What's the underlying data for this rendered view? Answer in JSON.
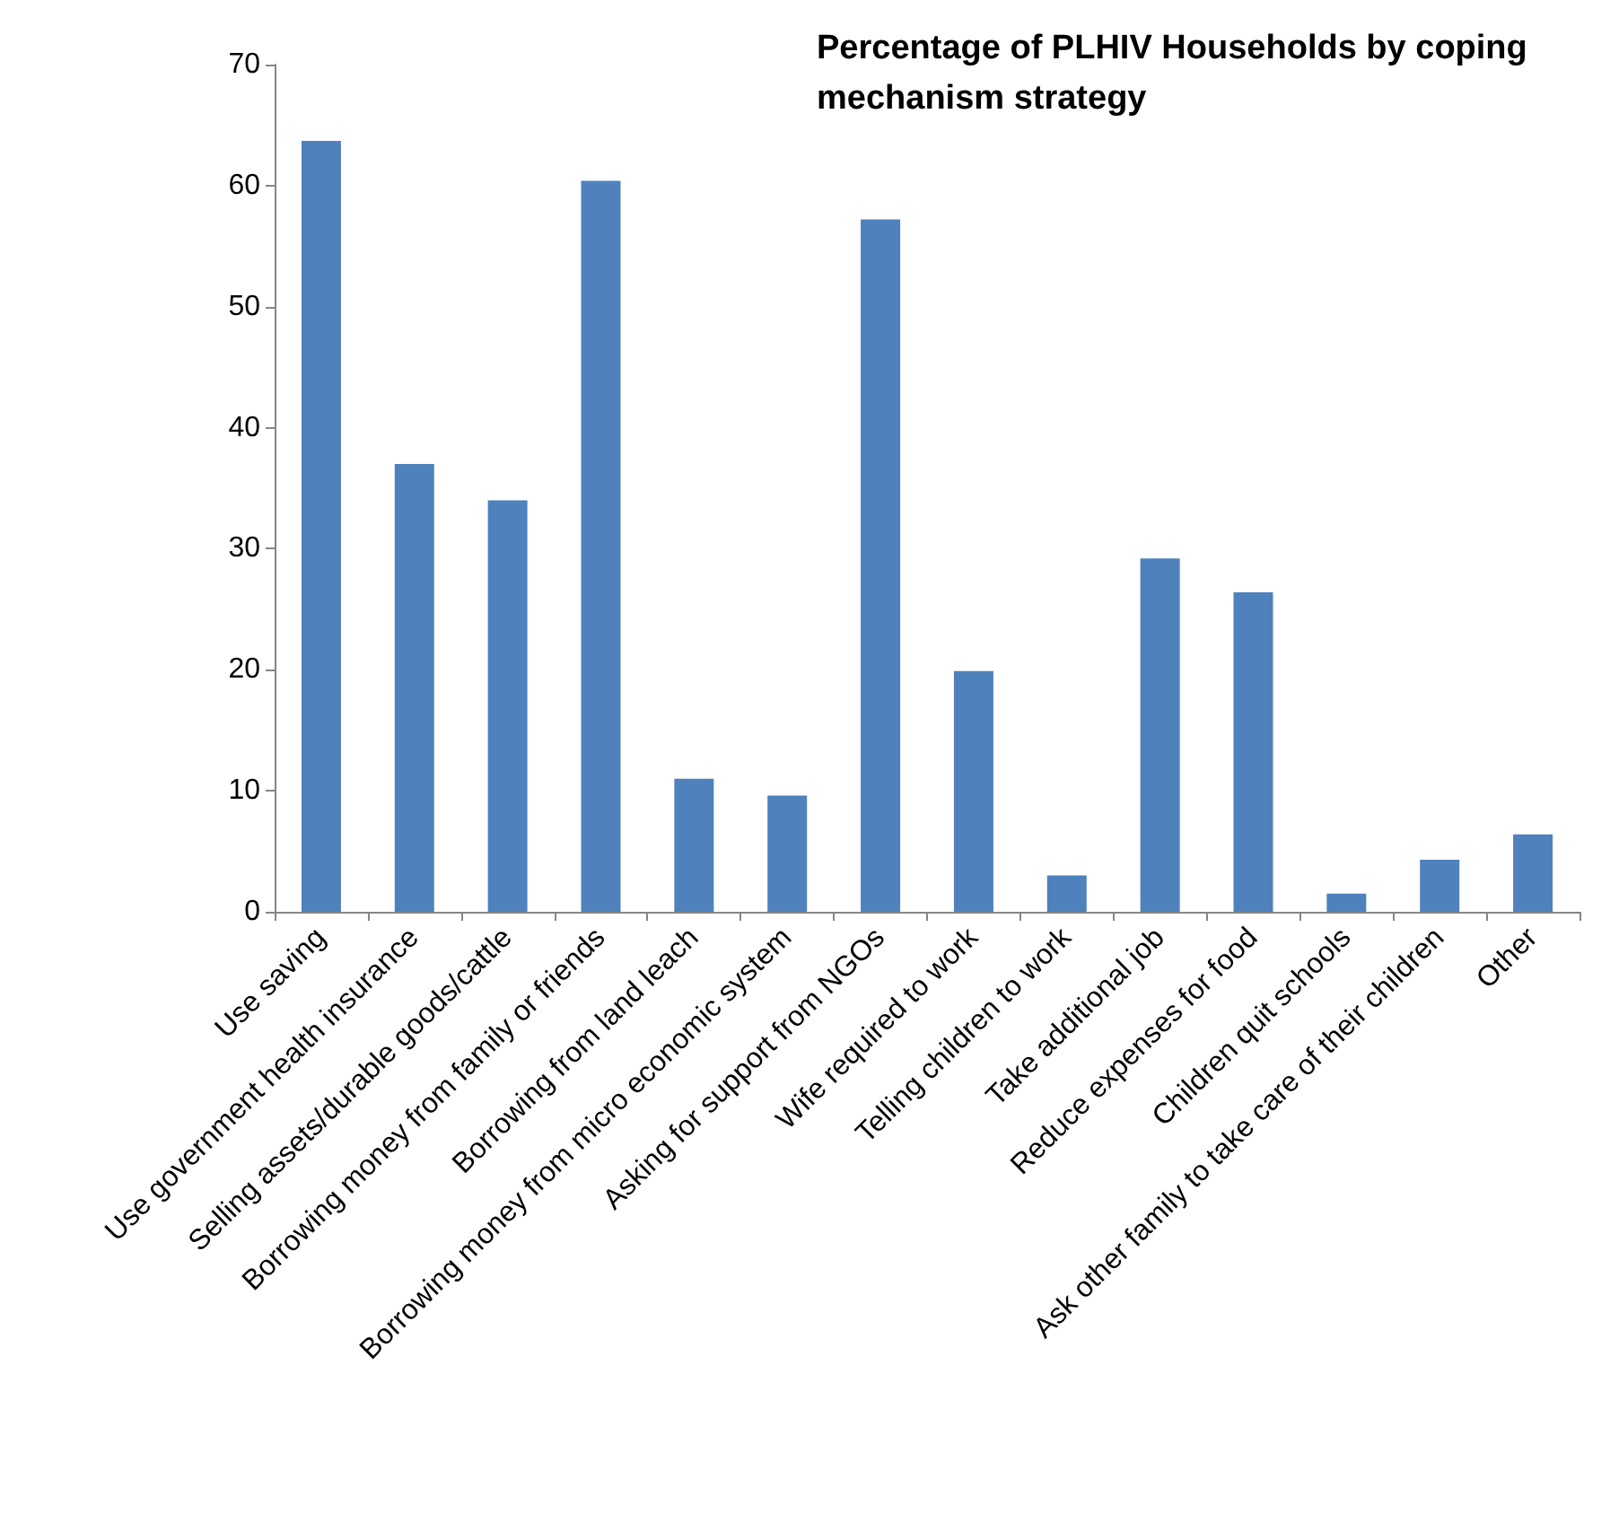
{
  "chart_data": {
    "type": "bar",
    "title": "Percentage of PLHIV Households by coping mechanism strategy",
    "categories": [
      "Use saving",
      "Use government health insurance",
      "Selling assets/durable goods/cattle",
      "Borrowing money from family or friends",
      "Borrowing from land leach",
      "Borrowing money from micro economic system",
      "Asking for support from NGOs",
      "Wife required to work",
      "Telling children to work",
      "Take additional job",
      "Reduce expenses for food",
      "Children quit schools",
      "Ask other family to take care of their children",
      "Other"
    ],
    "values": [
      63.7,
      37,
      34,
      60.4,
      11,
      9.6,
      57.2,
      19.9,
      3,
      29.2,
      26.4,
      1.5,
      4.3,
      6.4
    ],
    "color": "#4f81bd",
    "ylim": [
      0,
      70
    ],
    "yticks": [
      0,
      10,
      20,
      30,
      40,
      50,
      60,
      70
    ],
    "grid": false
  }
}
